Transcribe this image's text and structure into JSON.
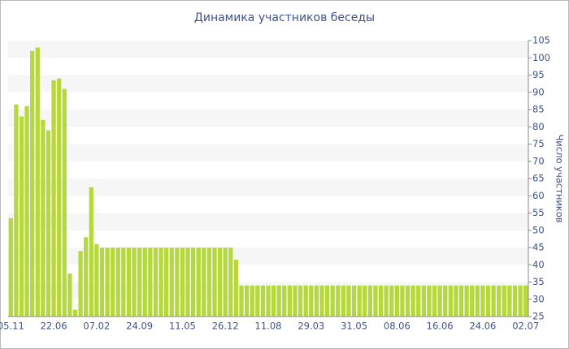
{
  "chart_data": {
    "type": "bar",
    "title": "Динамика участников беседы",
    "y_label": "Число участников",
    "categories": [
      "05.11",
      null,
      null,
      null,
      null,
      null,
      null,
      null,
      "22.06",
      null,
      null,
      null,
      null,
      null,
      null,
      null,
      "07.02",
      null,
      null,
      null,
      null,
      null,
      null,
      null,
      "24.09",
      null,
      null,
      null,
      null,
      null,
      null,
      null,
      "11.05",
      null,
      null,
      null,
      null,
      null,
      null,
      null,
      "26.12",
      null,
      null,
      null,
      null,
      null,
      null,
      null,
      "11.08",
      null,
      null,
      null,
      null,
      null,
      null,
      null,
      "29.03",
      null,
      null,
      null,
      null,
      null,
      null,
      null,
      "31.05",
      null,
      null,
      null,
      null,
      null,
      null,
      null,
      "08.06",
      null,
      null,
      null,
      null,
      null,
      null,
      null,
      "16.06",
      null,
      null,
      null,
      null,
      null,
      null,
      null,
      "24.06",
      null,
      null,
      null,
      null,
      null,
      null,
      null,
      "02.07"
    ],
    "values": [
      53.5,
      86.5,
      83,
      86,
      102,
      103,
      82,
      79,
      93.5,
      94,
      91,
      37.5,
      27,
      44,
      48,
      62.5,
      46,
      45,
      45,
      45,
      45,
      45,
      45,
      45,
      45,
      45,
      45,
      45,
      45,
      45,
      45,
      45,
      45,
      45,
      45,
      45,
      45,
      45,
      45,
      45,
      45,
      45,
      41.5,
      34,
      34,
      34,
      34,
      34,
      34,
      34,
      34,
      34,
      34,
      34,
      34,
      34,
      34,
      34,
      34,
      34,
      34,
      34,
      34,
      34,
      34,
      34,
      34,
      34,
      34,
      34,
      34,
      34,
      34,
      34,
      34,
      34,
      34,
      34,
      34,
      34,
      34,
      34,
      34,
      34,
      34,
      34,
      34,
      34,
      34,
      34,
      34,
      34,
      34,
      34,
      34,
      34,
      34
    ],
    "color": "#b5d93c",
    "ylim": [
      25,
      105
    ],
    "yticks": [
      25,
      30,
      35,
      40,
      45,
      50,
      55,
      60,
      65,
      70,
      75,
      80,
      85,
      90,
      95,
      100,
      105
    ],
    "grid": "bands",
    "y_axis_side": "right"
  }
}
